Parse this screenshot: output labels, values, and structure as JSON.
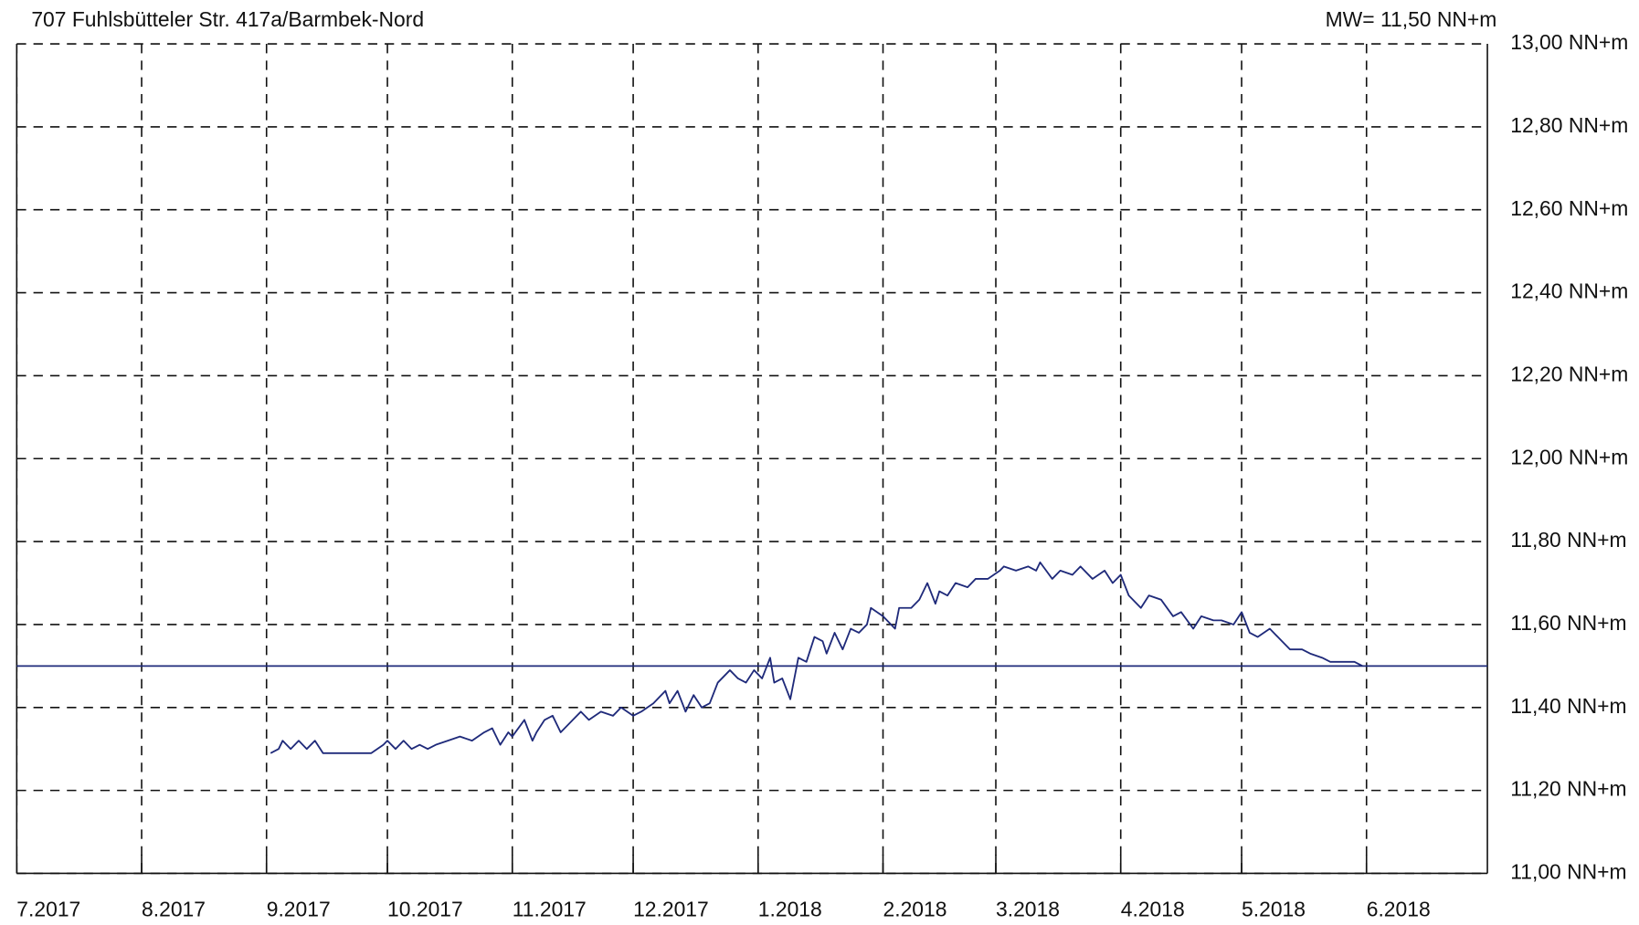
{
  "chart_data": {
    "type": "line",
    "title": "707 Fuhlsbütteler Str. 417a/Barmbek-Nord",
    "reference_line": {
      "value": 11.5,
      "label": "MW= 11,50 NN+m",
      "color": "#1f2a7a"
    },
    "xlim": [
      0,
      365
    ],
    "xticks": [
      {
        "value": 0,
        "label": "7.2017"
      },
      {
        "value": 31,
        "label": "8.2017"
      },
      {
        "value": 62,
        "label": "9.2017"
      },
      {
        "value": 92,
        "label": "10.2017"
      },
      {
        "value": 123,
        "label": "11.2017"
      },
      {
        "value": 153,
        "label": "12.2017"
      },
      {
        "value": 184,
        "label": "1.2018"
      },
      {
        "value": 215,
        "label": "2.2018"
      },
      {
        "value": 243,
        "label": "3.2018"
      },
      {
        "value": 274,
        "label": "4.2018"
      },
      {
        "value": 304,
        "label": "5.2018"
      },
      {
        "value": 335,
        "label": "6.2018"
      }
    ],
    "ylim": [
      11,
      13
    ],
    "yticks": [
      {
        "value": 11,
        "label": "11,00 NN+m"
      },
      {
        "value": 11.2,
        "label": "11,20 NN+m"
      },
      {
        "value": 11.4,
        "label": "11,40 NN+m"
      },
      {
        "value": 11.6,
        "label": "11,60 NN+m"
      },
      {
        "value": 11.8,
        "label": "11,80 NN+m"
      },
      {
        "value": 12,
        "label": "12,00 NN+m"
      },
      {
        "value": 12.2,
        "label": "12,20 NN+m"
      },
      {
        "value": 12.4,
        "label": "12,40 NN+m"
      },
      {
        "value": 12.6,
        "label": "12,60 NN+m"
      },
      {
        "value": 12.8,
        "label": "12,80 NN+m"
      },
      {
        "value": 13,
        "label": "13,00 NN+m"
      }
    ],
    "grid": true,
    "x": [
      63,
      65,
      66,
      68,
      70,
      72,
      74,
      76,
      79,
      84,
      88,
      91,
      92,
      94,
      96,
      98,
      100,
      102,
      104,
      107,
      110,
      113,
      116,
      118,
      120,
      122,
      123,
      126,
      128,
      129,
      131,
      133,
      135,
      138,
      140,
      142,
      145,
      148,
      150,
      153,
      155,
      158,
      161,
      162,
      164,
      166,
      168,
      170,
      172,
      174,
      177,
      179,
      181,
      183,
      185,
      187,
      188,
      190,
      192,
      194,
      196,
      198,
      200,
      201,
      203,
      205,
      207,
      209,
      211,
      212,
      215,
      218,
      219,
      222,
      224,
      226,
      228,
      229,
      231,
      233,
      236,
      238,
      241,
      244,
      245,
      248,
      251,
      253,
      254,
      257,
      259,
      262,
      264,
      267,
      270,
      272,
      274,
      276,
      279,
      281,
      284,
      287,
      289,
      292,
      294,
      297,
      299,
      302,
      304,
      306,
      308,
      311,
      314,
      316,
      319,
      321,
      324,
      326,
      328,
      332,
      334
    ],
    "series": [
      {
        "color": "#1f2a7a",
        "values": [
          11.29,
          11.3,
          11.32,
          11.3,
          11.32,
          11.3,
          11.32,
          11.29,
          11.29,
          11.29,
          11.29,
          11.31,
          11.32,
          11.3,
          11.32,
          11.3,
          11.31,
          11.3,
          11.31,
          11.32,
          11.33,
          11.32,
          11.34,
          11.35,
          11.31,
          11.34,
          11.33,
          11.37,
          11.32,
          11.34,
          11.37,
          11.38,
          11.34,
          11.37,
          11.39,
          11.37,
          11.39,
          11.38,
          11.4,
          11.38,
          11.39,
          11.41,
          11.44,
          11.41,
          11.44,
          11.39,
          11.43,
          11.4,
          11.41,
          11.46,
          11.49,
          11.47,
          11.46,
          11.49,
          11.47,
          11.52,
          11.46,
          11.47,
          11.42,
          11.52,
          11.51,
          11.57,
          11.56,
          11.53,
          11.58,
          11.54,
          11.59,
          11.58,
          11.6,
          11.64,
          11.62,
          11.59,
          11.64,
          11.64,
          11.66,
          11.7,
          11.65,
          11.68,
          11.67,
          11.7,
          11.69,
          11.71,
          11.71,
          11.73,
          11.74,
          11.73,
          11.74,
          11.73,
          11.75,
          11.71,
          11.73,
          11.72,
          11.74,
          11.71,
          11.73,
          11.7,
          11.72,
          11.67,
          11.64,
          11.67,
          11.66,
          11.62,
          11.63,
          11.59,
          11.62,
          11.61,
          11.61,
          11.6,
          11.63,
          11.58,
          11.57,
          11.59,
          11.56,
          11.54,
          11.54,
          11.53,
          11.52,
          11.51,
          11.51,
          11.51,
          11.5
        ]
      }
    ]
  }
}
